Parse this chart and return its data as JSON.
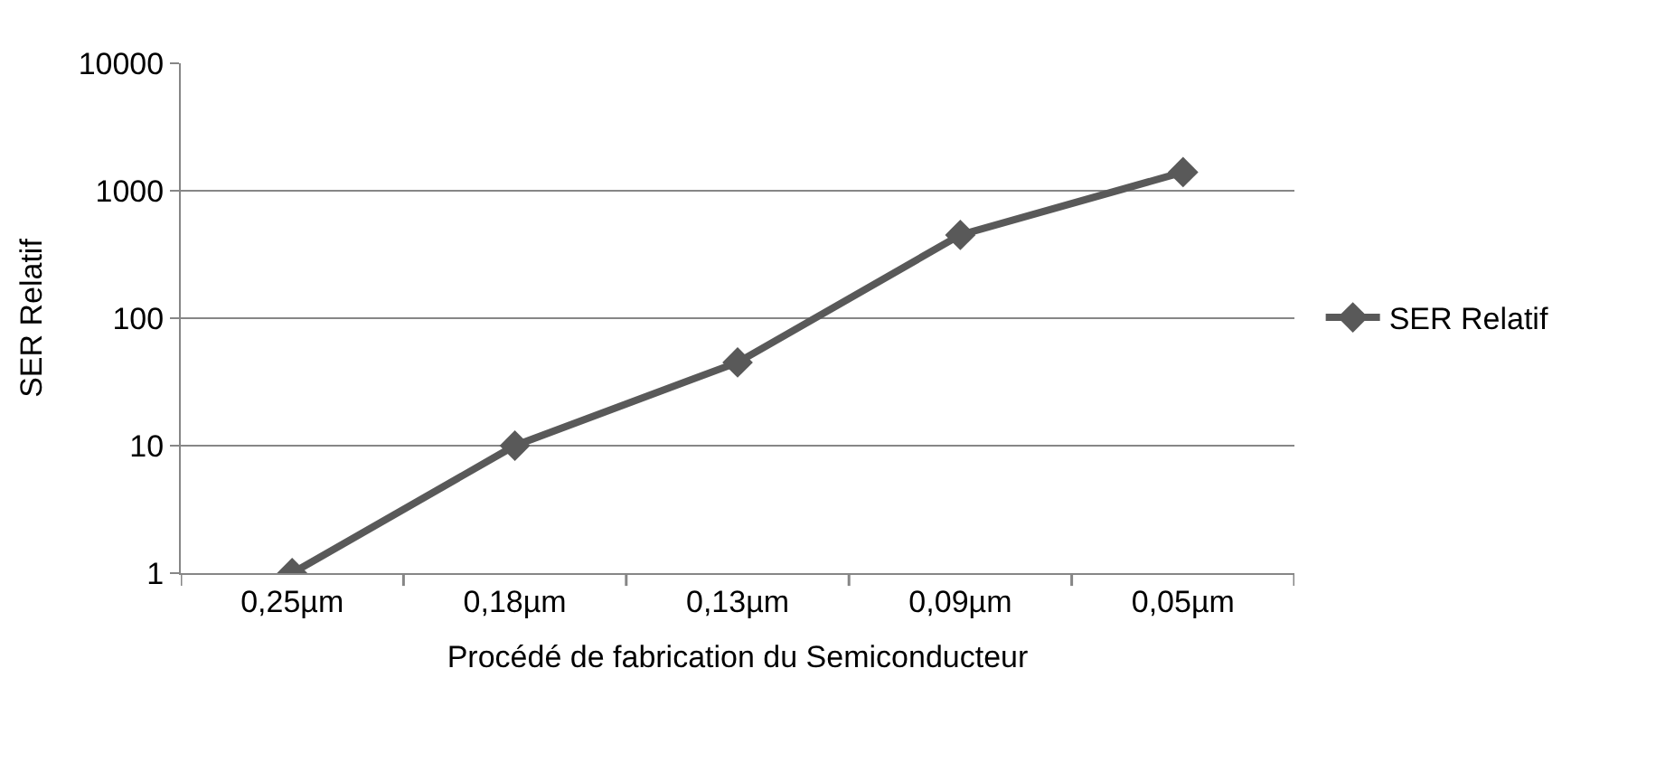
{
  "chart_data": {
    "type": "line",
    "xlabel": "Procédé de fabrication du Semiconducteur",
    "ylabel": "SER Relatif",
    "categories": [
      "0,25µm",
      "0,18µm",
      "0,13µm",
      "0,09µm",
      "0,05µm"
    ],
    "series": [
      {
        "name": "SER Relatif",
        "color": "#595959",
        "values": [
          1,
          10,
          45,
          450,
          1400
        ]
      }
    ],
    "log": "y",
    "ylim": [
      1,
      10000
    ],
    "yticks": [
      1,
      10,
      100,
      1000,
      10000
    ],
    "grid": "y",
    "legend": "right",
    "marker": "diamond",
    "line_style": "solid"
  }
}
